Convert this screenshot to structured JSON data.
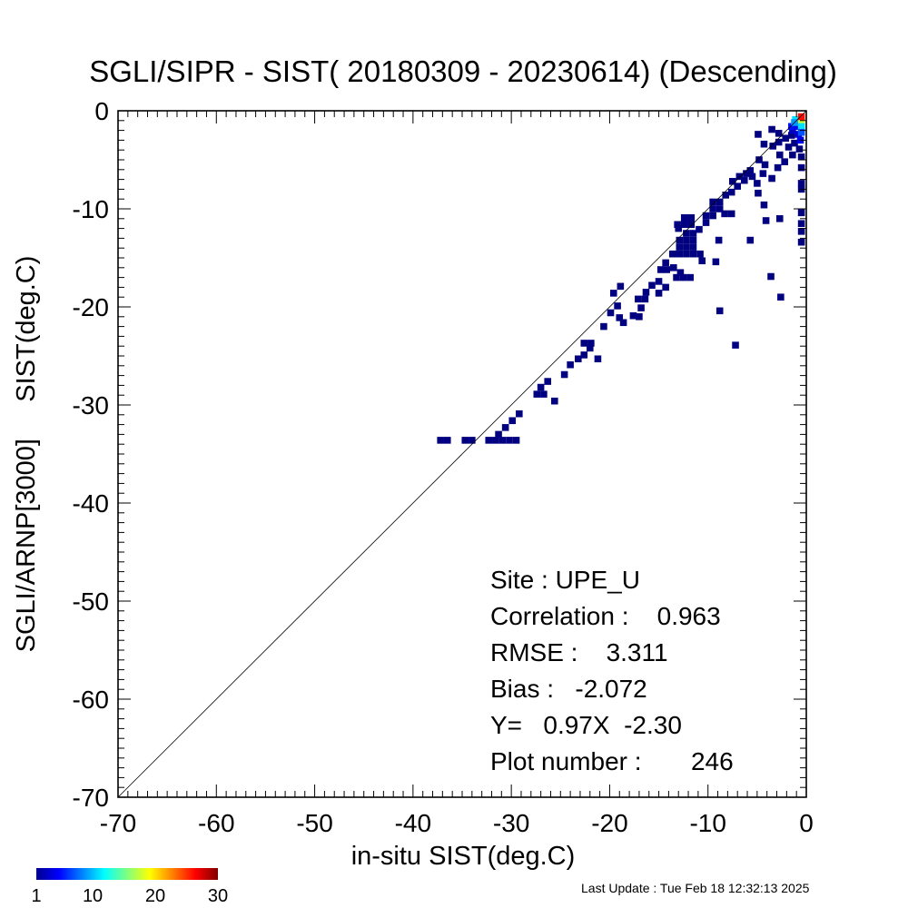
{
  "chart_data": {
    "type": "heatmap",
    "title": "SGLI/SIPR - SIST( 20180309 - 20230614) (Descending)",
    "xlabel": "in-situ SIST(deg.C)",
    "ylabel": "SGLI/ARNP[3000]     SIST(deg.C)",
    "xlim": [
      -70,
      0
    ],
    "ylim": [
      -70,
      0
    ],
    "x_ticks": [
      "-70",
      "-60",
      "-50",
      "-40",
      "-30",
      "-20",
      "-10",
      "0"
    ],
    "y_ticks": [
      "0",
      "-10",
      "-20",
      "-30",
      "-40",
      "-50",
      "-60",
      "-70"
    ],
    "reference_line": "y = x",
    "stats": {
      "site": "Site : UPE_U",
      "correlation": "Correlation :    0.963",
      "rmse": "RMSE :    3.311",
      "bias": "Bias :   -2.072",
      "fit": "Y=   0.97X  -2.30",
      "plot_number": "Plot number :       246"
    },
    "colorbar": {
      "ticks": [
        "1",
        "10",
        "20",
        "30"
      ],
      "min": 1,
      "max": 30,
      "colormap": "jet"
    },
    "cell_size": 0.7,
    "cells": [
      [
        -37.2,
        -33.6,
        1
      ],
      [
        -36.5,
        -33.6,
        1
      ],
      [
        -34.7,
        -33.6,
        1
      ],
      [
        -34.0,
        -33.6,
        1
      ],
      [
        -32.3,
        -33.6,
        1
      ],
      [
        -31.6,
        -33.6,
        1
      ],
      [
        -30.9,
        -33.6,
        1
      ],
      [
        -30.2,
        -33.6,
        1
      ],
      [
        -29.5,
        -33.6,
        1
      ],
      [
        -31.3,
        -33.0,
        1
      ],
      [
        -30.6,
        -32.3,
        1
      ],
      [
        -29.9,
        -31.6,
        1
      ],
      [
        -29.2,
        -30.9,
        1
      ],
      [
        -27.4,
        -28.9,
        1
      ],
      [
        -26.7,
        -28.9,
        1
      ],
      [
        -27.0,
        -28.2,
        1
      ],
      [
        -26.3,
        -27.6,
        1
      ],
      [
        -25.6,
        -29.6,
        1
      ],
      [
        -24.6,
        -26.9,
        1
      ],
      [
        -24.0,
        -25.9,
        1
      ],
      [
        -23.2,
        -25.3,
        1
      ],
      [
        -22.6,
        -24.9,
        1
      ],
      [
        -22.0,
        -24.2,
        1
      ],
      [
        -22.6,
        -23.7,
        1
      ],
      [
        -21.9,
        -23.7,
        1
      ],
      [
        -21.2,
        -25.3,
        1
      ],
      [
        -20.6,
        -22.0,
        1
      ],
      [
        -19.9,
        -20.6,
        1
      ],
      [
        -19.2,
        -19.9,
        1
      ],
      [
        -19.6,
        -18.6,
        1
      ],
      [
        -18.9,
        -17.9,
        1
      ],
      [
        -19.0,
        -21.1,
        1
      ],
      [
        -18.6,
        -21.6,
        1
      ],
      [
        -17.6,
        -20.9,
        1
      ],
      [
        -17.0,
        -21.0,
        1
      ],
      [
        -16.8,
        -20.1,
        1
      ],
      [
        -17.1,
        -19.2,
        1
      ],
      [
        -16.4,
        -19.2,
        1
      ],
      [
        -16.3,
        -18.5,
        1
      ],
      [
        -15.7,
        -17.8,
        1
      ],
      [
        -15.0,
        -17.4,
        1
      ],
      [
        -15.0,
        -18.6,
        1
      ],
      [
        -14.3,
        -18.0,
        1
      ],
      [
        -14.8,
        -16.2,
        1
      ],
      [
        -14.2,
        -16.2,
        1
      ],
      [
        -14.3,
        -15.5,
        1
      ],
      [
        -13.5,
        -16.0,
        1
      ],
      [
        -13.2,
        -17.0,
        1
      ],
      [
        -12.5,
        -17.0,
        1
      ],
      [
        -11.8,
        -17.0,
        1
      ],
      [
        -12.8,
        -16.5,
        1
      ],
      [
        -13.6,
        -14.6,
        1
      ],
      [
        -12.9,
        -14.6,
        1
      ],
      [
        -12.2,
        -14.6,
        1
      ],
      [
        -11.5,
        -14.6,
        1
      ],
      [
        -10.8,
        -14.6,
        1
      ],
      [
        -12.9,
        -13.9,
        1
      ],
      [
        -12.2,
        -13.9,
        1
      ],
      [
        -11.5,
        -13.9,
        1
      ],
      [
        -12.9,
        -13.2,
        1
      ],
      [
        -12.2,
        -13.2,
        1
      ],
      [
        -11.5,
        -13.2,
        1
      ],
      [
        -12.2,
        -12.5,
        1
      ],
      [
        -11.5,
        -12.5,
        1
      ],
      [
        -13.1,
        -11.6,
        1
      ],
      [
        -12.4,
        -11.6,
        1
      ],
      [
        -11.7,
        -11.6,
        1
      ],
      [
        -12.4,
        -10.9,
        1
      ],
      [
        -11.7,
        -10.9,
        1
      ],
      [
        -13.0,
        -12.0,
        1
      ],
      [
        -10.9,
        -12.1,
        1
      ],
      [
        -10.2,
        -11.4,
        1
      ],
      [
        -10.2,
        -10.7,
        1
      ],
      [
        -9.5,
        -10.7,
        1
      ],
      [
        -9.5,
        -10.0,
        1
      ],
      [
        -8.8,
        -10.0,
        1
      ],
      [
        -9.5,
        -9.3,
        1
      ],
      [
        -8.8,
        -9.3,
        1
      ],
      [
        -10.6,
        -15.3,
        1
      ],
      [
        -9.2,
        -15.4,
        1
      ],
      [
        -8.9,
        -13.2,
        1
      ],
      [
        -8.3,
        -10.5,
        1
      ],
      [
        -7.6,
        -10.5,
        1
      ],
      [
        -8.2,
        -8.6,
        1
      ],
      [
        -7.6,
        -8.3,
        1
      ],
      [
        -7.0,
        -7.7,
        1
      ],
      [
        -6.3,
        -7.1,
        1
      ],
      [
        -7.5,
        -7.2,
        1
      ],
      [
        -6.8,
        -6.7,
        1
      ],
      [
        -6.1,
        -6.4,
        1
      ],
      [
        -5.7,
        -6.1,
        1
      ],
      [
        -5.5,
        -6.7,
        1
      ],
      [
        -5.0,
        -7.4,
        1
      ],
      [
        -4.4,
        -6.4,
        1
      ],
      [
        -4.2,
        -5.5,
        1
      ],
      [
        -4.8,
        -5.0,
        1
      ],
      [
        -4.9,
        -8.4,
        1
      ],
      [
        -4.3,
        -9.6,
        1
      ],
      [
        -3.5,
        -6.9,
        1
      ],
      [
        -2.9,
        -5.8,
        1
      ],
      [
        -2.2,
        -5.2,
        1
      ],
      [
        -2.7,
        -4.5,
        1
      ],
      [
        -1.8,
        -3.7,
        1
      ],
      [
        -3.4,
        -3.6,
        1
      ],
      [
        -2.8,
        -3.2,
        1
      ],
      [
        -2.1,
        -2.8,
        1
      ],
      [
        -1.5,
        -2.5,
        1
      ],
      [
        -2.8,
        -2.3,
        1
      ],
      [
        -3.5,
        -1.9,
        1
      ],
      [
        -1.2,
        -3.3,
        1
      ],
      [
        -1.4,
        -4.5,
        1
      ],
      [
        -0.5,
        -4.7,
        1
      ],
      [
        -0.5,
        -5.8,
        1
      ],
      [
        -0.5,
        -7.4,
        1
      ],
      [
        -0.5,
        -8.0,
        1
      ],
      [
        -0.5,
        -10.4,
        1
      ],
      [
        -0.5,
        -11.5,
        1
      ],
      [
        -0.5,
        -12.3,
        1
      ],
      [
        -0.5,
        -13.4,
        1
      ],
      [
        -0.7,
        -3.9,
        1
      ],
      [
        -4.3,
        -3.4,
        1
      ],
      [
        -4.9,
        -2.4,
        1
      ],
      [
        -5.7,
        -13.2,
        1
      ],
      [
        -4.1,
        -11.2,
        1
      ],
      [
        -2.7,
        -11.0,
        1
      ],
      [
        -3.6,
        -16.9,
        1
      ],
      [
        -2.6,
        -19.0,
        1
      ],
      [
        -8.8,
        -20.4,
        1
      ],
      [
        -7.2,
        -23.9,
        1
      ],
      [
        -1.4,
        -2.0,
        3
      ],
      [
        -0.8,
        -2.4,
        3
      ],
      [
        -1.5,
        -1.6,
        5
      ],
      [
        -0.9,
        -1.6,
        4
      ],
      [
        -1.1,
        -0.9,
        11
      ],
      [
        -0.5,
        -1.1,
        18
      ],
      [
        -0.5,
        -0.6,
        26
      ],
      [
        -0.5,
        -1.6,
        11
      ],
      [
        -0.5,
        -2.2,
        7
      ],
      [
        -1.2,
        -1.2,
        9
      ],
      [
        -0.6,
        -3.0,
        4
      ]
    ]
  },
  "footer": {
    "last_update": "Last Update : Tue Feb 18 12:32:13 2025"
  }
}
